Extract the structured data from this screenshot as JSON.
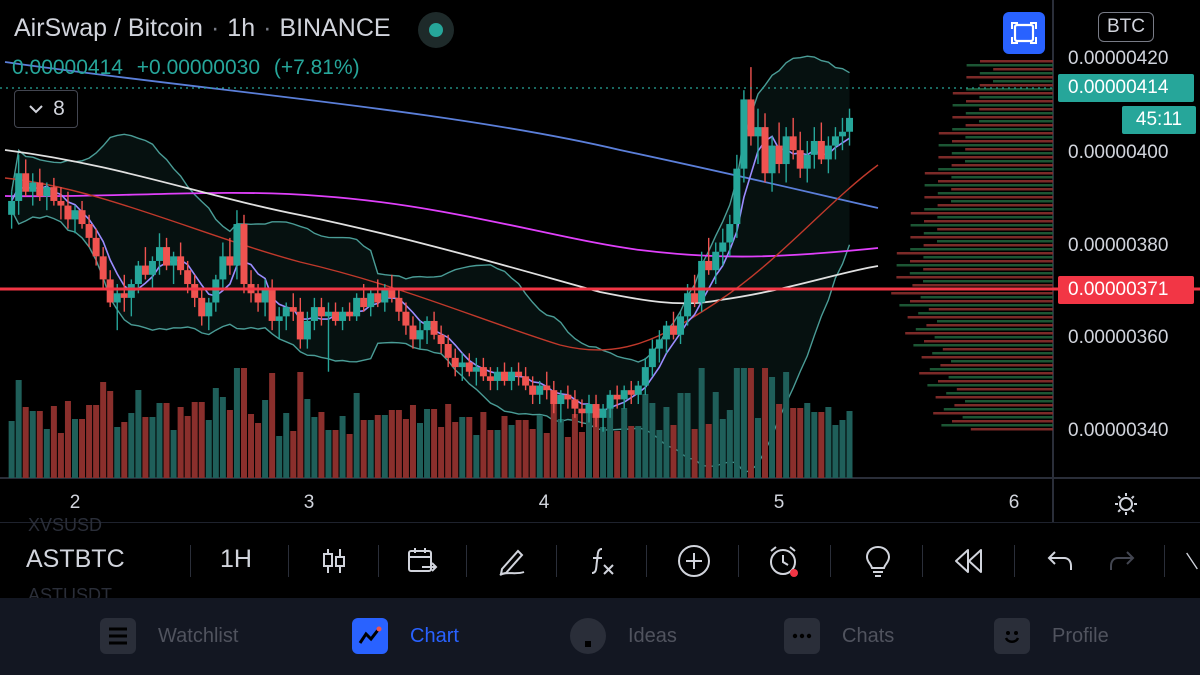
{
  "header": {
    "pair": "AirSwap / Bitcoin",
    "interval": "1h",
    "exchange": "BINANCE",
    "separator": "·"
  },
  "quote": {
    "last": "0.00000414",
    "change": "+0.00000030",
    "change_pct": "(+7.81%)"
  },
  "indicators": {
    "count": "8"
  },
  "price_axis": {
    "currency": "BTC",
    "labels": [
      "0.00000420",
      "0.00000400",
      "0.00000380",
      "0.00000360",
      "0.00000340"
    ],
    "current_price": "0.00000414",
    "countdown": "45:11",
    "horizontal_line_price": "0.00000371"
  },
  "time_axis": {
    "labels": [
      "2",
      "3",
      "4",
      "5",
      "6"
    ]
  },
  "toolbar": {
    "symbol": "ASTBTC",
    "interval": "1H",
    "ghost_top": "XVSUSD",
    "ghost_bottom": "ASTUSDT"
  },
  "nav": {
    "items": [
      {
        "label": "Watchlist",
        "icon": "watchlist-icon"
      },
      {
        "label": "Chart",
        "icon": "chart-icon"
      },
      {
        "label": "Ideas",
        "icon": "ideas-icon"
      },
      {
        "label": "Chats",
        "icon": "chats-icon"
      },
      {
        "label": "Profile",
        "icon": "profile-icon"
      }
    ]
  },
  "colors": {
    "up": "#26a69a",
    "down": "#ef5350",
    "accent": "#2962ff",
    "hline": "#f23645",
    "ma_white": "#e0e0e0",
    "ma_magenta": "#e040fb",
    "ma_blue": "#5b7fd9",
    "ma_purple": "#9b8cff",
    "ma_red": "#c0392b",
    "bb": "#4a9c96"
  },
  "chart_data": {
    "type": "candlestick",
    "y_range": [
      3.32e-06,
      4.28e-06
    ],
    "x_range_days": [
      1.7,
      6.2
    ],
    "candles": [
      [
        1.73,
        3.93,
        3.98,
        3.9,
        3.96
      ],
      [
        1.76,
        3.96,
        4.06,
        3.93,
        4.02
      ],
      [
        1.79,
        4.02,
        4.05,
        3.97,
        3.98
      ],
      [
        1.82,
        3.98,
        4.02,
        3.95,
        4.0
      ],
      [
        1.85,
        4.0,
        4.03,
        3.96,
        3.97
      ],
      [
        1.88,
        3.97,
        4.0,
        3.94,
        3.99
      ],
      [
        1.91,
        3.99,
        4.01,
        3.95,
        3.96
      ],
      [
        1.94,
        3.96,
        3.99,
        3.92,
        3.95
      ],
      [
        1.97,
        3.95,
        3.98,
        3.9,
        3.92
      ],
      [
        2.0,
        3.92,
        3.95,
        3.89,
        3.94
      ],
      [
        2.03,
        3.94,
        3.96,
        3.9,
        3.91
      ],
      [
        2.06,
        3.91,
        3.93,
        3.86,
        3.88
      ],
      [
        2.09,
        3.88,
        3.9,
        3.82,
        3.84
      ],
      [
        2.12,
        3.84,
        3.86,
        3.77,
        3.79
      ],
      [
        2.15,
        3.79,
        3.81,
        3.73,
        3.74
      ],
      [
        2.18,
        3.74,
        3.78,
        3.68,
        3.76
      ],
      [
        2.21,
        3.76,
        3.8,
        3.72,
        3.75
      ],
      [
        2.24,
        3.75,
        3.79,
        3.71,
        3.78
      ],
      [
        2.27,
        3.78,
        3.83,
        3.76,
        3.82
      ],
      [
        2.3,
        3.82,
        3.86,
        3.79,
        3.8
      ],
      [
        2.33,
        3.8,
        3.84,
        3.77,
        3.83
      ],
      [
        2.36,
        3.83,
        3.89,
        3.8,
        3.86
      ],
      [
        2.39,
        3.86,
        3.88,
        3.81,
        3.82
      ],
      [
        2.42,
        3.82,
        3.85,
        3.78,
        3.84
      ],
      [
        2.45,
        3.84,
        3.87,
        3.8,
        3.81
      ],
      [
        2.48,
        3.81,
        3.83,
        3.76,
        3.78
      ],
      [
        2.51,
        3.78,
        3.8,
        3.73,
        3.75
      ],
      [
        2.54,
        3.75,
        3.77,
        3.69,
        3.71
      ],
      [
        2.57,
        3.71,
        3.75,
        3.68,
        3.74
      ],
      [
        2.6,
        3.74,
        3.8,
        3.72,
        3.79
      ],
      [
        2.63,
        3.79,
        3.87,
        3.77,
        3.84
      ],
      [
        2.66,
        3.84,
        3.88,
        3.8,
        3.82
      ],
      [
        2.69,
        3.82,
        3.94,
        3.79,
        3.91
      ],
      [
        2.72,
        3.91,
        3.93,
        3.76,
        3.78
      ],
      [
        2.75,
        3.78,
        3.81,
        3.74,
        3.76
      ],
      [
        2.78,
        3.76,
        3.78,
        3.72,
        3.74
      ],
      [
        2.81,
        3.74,
        3.79,
        3.71,
        3.77
      ],
      [
        2.84,
        3.77,
        3.79,
        3.68,
        3.7
      ],
      [
        2.87,
        3.7,
        3.73,
        3.66,
        3.71
      ],
      [
        2.9,
        3.71,
        3.74,
        3.68,
        3.73
      ],
      [
        2.93,
        3.73,
        3.76,
        3.7,
        3.72
      ],
      [
        2.96,
        3.72,
        3.75,
        3.64,
        3.66
      ],
      [
        2.99,
        3.66,
        3.72,
        3.64,
        3.7
      ],
      [
        3.02,
        3.7,
        3.75,
        3.68,
        3.73
      ],
      [
        3.05,
        3.73,
        3.75,
        3.69,
        3.71
      ],
      [
        3.08,
        3.71,
        3.74,
        3.59,
        3.72
      ],
      [
        3.11,
        3.72,
        3.74,
        3.69,
        3.7
      ],
      [
        3.14,
        3.7,
        3.73,
        3.68,
        3.72
      ],
      [
        3.17,
        3.72,
        3.74,
        3.7,
        3.71
      ],
      [
        3.2,
        3.71,
        3.76,
        3.7,
        3.75
      ],
      [
        3.23,
        3.75,
        3.78,
        3.72,
        3.73
      ],
      [
        3.26,
        3.73,
        3.77,
        3.71,
        3.76
      ],
      [
        3.29,
        3.76,
        3.79,
        3.73,
        3.74
      ],
      [
        3.32,
        3.74,
        3.78,
        3.72,
        3.77
      ],
      [
        3.35,
        3.77,
        3.8,
        3.74,
        3.75
      ],
      [
        3.38,
        3.75,
        3.77,
        3.7,
        3.72
      ],
      [
        3.41,
        3.72,
        3.74,
        3.67,
        3.69
      ],
      [
        3.44,
        3.69,
        3.71,
        3.64,
        3.66
      ],
      [
        3.47,
        3.66,
        3.7,
        3.64,
        3.68
      ],
      [
        3.5,
        3.68,
        3.71,
        3.65,
        3.7
      ],
      [
        3.53,
        3.7,
        3.72,
        3.66,
        3.67
      ],
      [
        3.56,
        3.67,
        3.69,
        3.63,
        3.65
      ],
      [
        3.59,
        3.65,
        3.67,
        3.6,
        3.62
      ],
      [
        3.62,
        3.62,
        3.64,
        3.58,
        3.6
      ],
      [
        3.65,
        3.6,
        3.63,
        3.57,
        3.61
      ],
      [
        3.68,
        3.61,
        3.63,
        3.58,
        3.59
      ],
      [
        3.71,
        3.59,
        3.62,
        3.56,
        3.6
      ],
      [
        3.74,
        3.6,
        3.62,
        3.57,
        3.58
      ],
      [
        3.77,
        3.58,
        3.6,
        3.55,
        3.57
      ],
      [
        3.8,
        3.57,
        3.6,
        3.55,
        3.59
      ],
      [
        3.83,
        3.59,
        3.61,
        3.56,
        3.57
      ],
      [
        3.86,
        3.57,
        3.6,
        3.55,
        3.59
      ],
      [
        3.89,
        3.59,
        3.61,
        3.56,
        3.58
      ],
      [
        3.92,
        3.58,
        3.6,
        3.55,
        3.56
      ],
      [
        3.95,
        3.56,
        3.58,
        3.52,
        3.54
      ],
      [
        3.98,
        3.54,
        3.57,
        3.52,
        3.56
      ],
      [
        4.01,
        3.56,
        3.59,
        3.53,
        3.55
      ],
      [
        4.04,
        3.55,
        3.57,
        3.5,
        3.52
      ],
      [
        4.07,
        3.52,
        3.55,
        3.48,
        3.54
      ],
      [
        4.1,
        3.54,
        3.56,
        3.51,
        3.53
      ],
      [
        4.13,
        3.53,
        3.55,
        3.49,
        3.51
      ],
      [
        4.16,
        3.51,
        3.53,
        3.47,
        3.5
      ],
      [
        4.19,
        3.5,
        3.54,
        3.48,
        3.52
      ],
      [
        4.22,
        3.52,
        3.54,
        3.47,
        3.49
      ],
      [
        4.25,
        3.49,
        3.52,
        3.46,
        3.51
      ],
      [
        4.28,
        3.51,
        3.55,
        3.49,
        3.54
      ],
      [
        4.31,
        3.54,
        3.56,
        3.51,
        3.53
      ],
      [
        4.34,
        3.53,
        3.56,
        3.51,
        3.55
      ],
      [
        4.37,
        3.55,
        3.57,
        3.52,
        3.54
      ],
      [
        4.4,
        3.54,
        3.57,
        3.52,
        3.56
      ],
      [
        4.43,
        3.56,
        3.62,
        3.54,
        3.6
      ],
      [
        4.46,
        3.6,
        3.66,
        3.58,
        3.64
      ],
      [
        4.49,
        3.64,
        3.68,
        3.61,
        3.66
      ],
      [
        4.52,
        3.66,
        3.7,
        3.63,
        3.69
      ],
      [
        4.55,
        3.69,
        3.72,
        3.66,
        3.67
      ],
      [
        4.58,
        3.67,
        3.72,
        3.65,
        3.71
      ],
      [
        4.61,
        3.71,
        3.78,
        3.69,
        3.76
      ],
      [
        4.64,
        3.76,
        3.8,
        3.73,
        3.74
      ],
      [
        4.67,
        3.74,
        3.85,
        3.72,
        3.83
      ],
      [
        4.7,
        3.83,
        3.88,
        3.8,
        3.81
      ],
      [
        4.73,
        3.81,
        3.87,
        3.78,
        3.85
      ],
      [
        4.76,
        3.85,
        3.9,
        3.82,
        3.87
      ],
      [
        4.79,
        3.87,
        3.93,
        3.84,
        3.91
      ],
      [
        4.82,
        3.91,
        4.06,
        3.88,
        4.03
      ],
      [
        4.85,
        4.03,
        4.2,
        4.0,
        4.18
      ],
      [
        4.88,
        4.18,
        4.25,
        4.08,
        4.1
      ],
      [
        4.91,
        4.1,
        4.16,
        4.04,
        4.12
      ],
      [
        4.94,
        4.12,
        4.15,
        4.0,
        4.02
      ],
      [
        4.97,
        4.02,
        4.1,
        3.98,
        4.08
      ],
      [
        5.0,
        4.08,
        4.13,
        4.02,
        4.04
      ],
      [
        5.03,
        4.04,
        4.12,
        4.0,
        4.1
      ],
      [
        5.06,
        4.1,
        4.14,
        4.05,
        4.07
      ],
      [
        5.09,
        4.07,
        4.11,
        4.01,
        4.03
      ],
      [
        5.12,
        4.03,
        4.09,
        4.0,
        4.06
      ],
      [
        5.15,
        4.06,
        4.12,
        4.03,
        4.09
      ],
      [
        5.18,
        4.09,
        4.13,
        4.04,
        4.05
      ],
      [
        5.21,
        4.05,
        4.1,
        4.02,
        4.08
      ],
      [
        5.24,
        4.08,
        4.12,
        4.05,
        4.1
      ],
      [
        5.27,
        4.1,
        4.14,
        4.07,
        4.11
      ],
      [
        5.3,
        4.11,
        4.16,
        4.08,
        4.14
      ]
    ]
  }
}
